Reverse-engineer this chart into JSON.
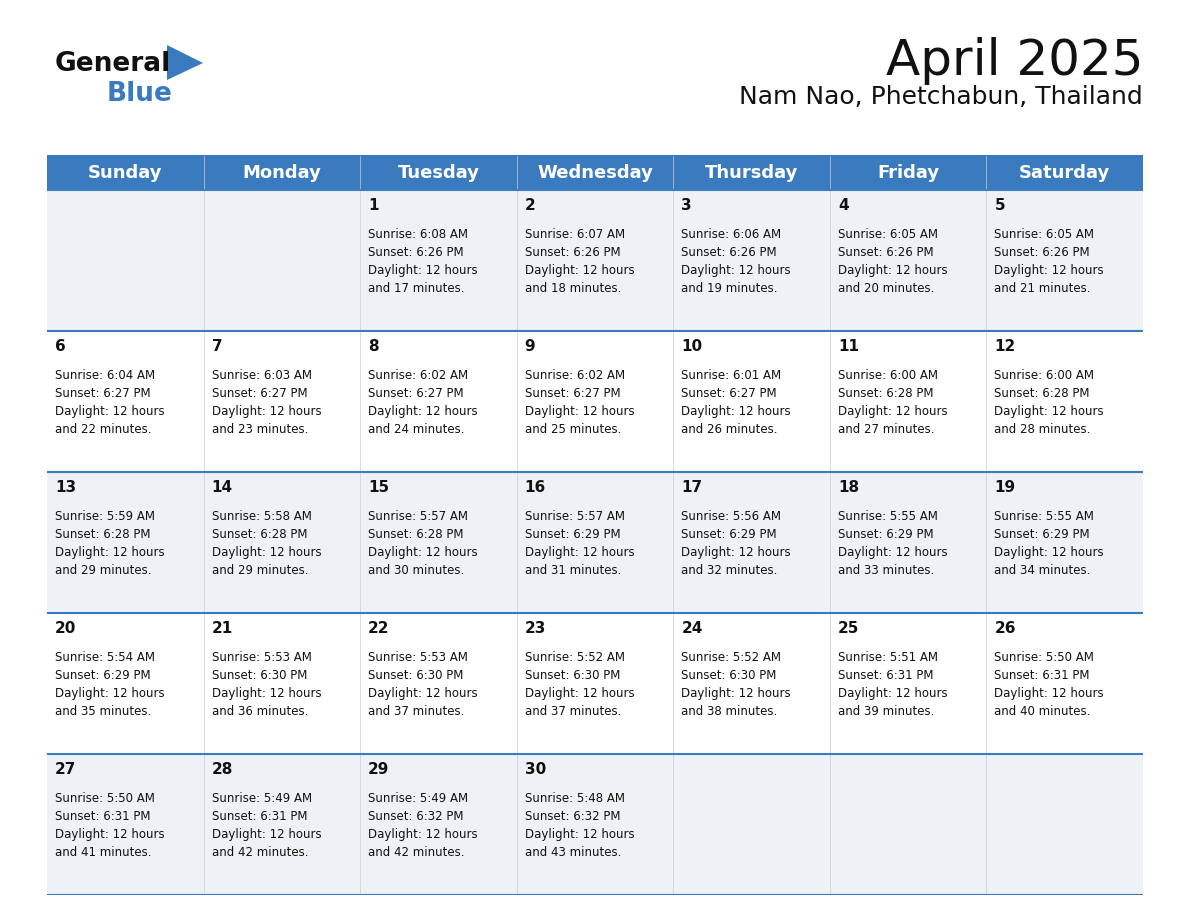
{
  "title": "April 2025",
  "subtitle": "Nam Nao, Phetchabun, Thailand",
  "header_bg": "#3a7bbf",
  "header_text": "#ffffff",
  "row_bg_odd": "#eef2f6",
  "row_bg_even": "#ffffff",
  "separator_color": "#3a7bbf",
  "day_headers": [
    "Sunday",
    "Monday",
    "Tuesday",
    "Wednesday",
    "Thursday",
    "Friday",
    "Saturday"
  ],
  "weeks": [
    [
      {
        "day": "",
        "sunrise": "",
        "sunset": "",
        "daylight": ""
      },
      {
        "day": "",
        "sunrise": "",
        "sunset": "",
        "daylight": ""
      },
      {
        "day": "1",
        "sunrise": "Sunrise: 6:08 AM",
        "sunset": "Sunset: 6:26 PM",
        "daylight": "Daylight: 12 hours\nand 17 minutes."
      },
      {
        "day": "2",
        "sunrise": "Sunrise: 6:07 AM",
        "sunset": "Sunset: 6:26 PM",
        "daylight": "Daylight: 12 hours\nand 18 minutes."
      },
      {
        "day": "3",
        "sunrise": "Sunrise: 6:06 AM",
        "sunset": "Sunset: 6:26 PM",
        "daylight": "Daylight: 12 hours\nand 19 minutes."
      },
      {
        "day": "4",
        "sunrise": "Sunrise: 6:05 AM",
        "sunset": "Sunset: 6:26 PM",
        "daylight": "Daylight: 12 hours\nand 20 minutes."
      },
      {
        "day": "5",
        "sunrise": "Sunrise: 6:05 AM",
        "sunset": "Sunset: 6:26 PM",
        "daylight": "Daylight: 12 hours\nand 21 minutes."
      }
    ],
    [
      {
        "day": "6",
        "sunrise": "Sunrise: 6:04 AM",
        "sunset": "Sunset: 6:27 PM",
        "daylight": "Daylight: 12 hours\nand 22 minutes."
      },
      {
        "day": "7",
        "sunrise": "Sunrise: 6:03 AM",
        "sunset": "Sunset: 6:27 PM",
        "daylight": "Daylight: 12 hours\nand 23 minutes."
      },
      {
        "day": "8",
        "sunrise": "Sunrise: 6:02 AM",
        "sunset": "Sunset: 6:27 PM",
        "daylight": "Daylight: 12 hours\nand 24 minutes."
      },
      {
        "day": "9",
        "sunrise": "Sunrise: 6:02 AM",
        "sunset": "Sunset: 6:27 PM",
        "daylight": "Daylight: 12 hours\nand 25 minutes."
      },
      {
        "day": "10",
        "sunrise": "Sunrise: 6:01 AM",
        "sunset": "Sunset: 6:27 PM",
        "daylight": "Daylight: 12 hours\nand 26 minutes."
      },
      {
        "day": "11",
        "sunrise": "Sunrise: 6:00 AM",
        "sunset": "Sunset: 6:28 PM",
        "daylight": "Daylight: 12 hours\nand 27 minutes."
      },
      {
        "day": "12",
        "sunrise": "Sunrise: 6:00 AM",
        "sunset": "Sunset: 6:28 PM",
        "daylight": "Daylight: 12 hours\nand 28 minutes."
      }
    ],
    [
      {
        "day": "13",
        "sunrise": "Sunrise: 5:59 AM",
        "sunset": "Sunset: 6:28 PM",
        "daylight": "Daylight: 12 hours\nand 29 minutes."
      },
      {
        "day": "14",
        "sunrise": "Sunrise: 5:58 AM",
        "sunset": "Sunset: 6:28 PM",
        "daylight": "Daylight: 12 hours\nand 29 minutes."
      },
      {
        "day": "15",
        "sunrise": "Sunrise: 5:57 AM",
        "sunset": "Sunset: 6:28 PM",
        "daylight": "Daylight: 12 hours\nand 30 minutes."
      },
      {
        "day": "16",
        "sunrise": "Sunrise: 5:57 AM",
        "sunset": "Sunset: 6:29 PM",
        "daylight": "Daylight: 12 hours\nand 31 minutes."
      },
      {
        "day": "17",
        "sunrise": "Sunrise: 5:56 AM",
        "sunset": "Sunset: 6:29 PM",
        "daylight": "Daylight: 12 hours\nand 32 minutes."
      },
      {
        "day": "18",
        "sunrise": "Sunrise: 5:55 AM",
        "sunset": "Sunset: 6:29 PM",
        "daylight": "Daylight: 12 hours\nand 33 minutes."
      },
      {
        "day": "19",
        "sunrise": "Sunrise: 5:55 AM",
        "sunset": "Sunset: 6:29 PM",
        "daylight": "Daylight: 12 hours\nand 34 minutes."
      }
    ],
    [
      {
        "day": "20",
        "sunrise": "Sunrise: 5:54 AM",
        "sunset": "Sunset: 6:29 PM",
        "daylight": "Daylight: 12 hours\nand 35 minutes."
      },
      {
        "day": "21",
        "sunrise": "Sunrise: 5:53 AM",
        "sunset": "Sunset: 6:30 PM",
        "daylight": "Daylight: 12 hours\nand 36 minutes."
      },
      {
        "day": "22",
        "sunrise": "Sunrise: 5:53 AM",
        "sunset": "Sunset: 6:30 PM",
        "daylight": "Daylight: 12 hours\nand 37 minutes."
      },
      {
        "day": "23",
        "sunrise": "Sunrise: 5:52 AM",
        "sunset": "Sunset: 6:30 PM",
        "daylight": "Daylight: 12 hours\nand 37 minutes."
      },
      {
        "day": "24",
        "sunrise": "Sunrise: 5:52 AM",
        "sunset": "Sunset: 6:30 PM",
        "daylight": "Daylight: 12 hours\nand 38 minutes."
      },
      {
        "day": "25",
        "sunrise": "Sunrise: 5:51 AM",
        "sunset": "Sunset: 6:31 PM",
        "daylight": "Daylight: 12 hours\nand 39 minutes."
      },
      {
        "day": "26",
        "sunrise": "Sunrise: 5:50 AM",
        "sunset": "Sunset: 6:31 PM",
        "daylight": "Daylight: 12 hours\nand 40 minutes."
      }
    ],
    [
      {
        "day": "27",
        "sunrise": "Sunrise: 5:50 AM",
        "sunset": "Sunset: 6:31 PM",
        "daylight": "Daylight: 12 hours\nand 41 minutes."
      },
      {
        "day": "28",
        "sunrise": "Sunrise: 5:49 AM",
        "sunset": "Sunset: 6:31 PM",
        "daylight": "Daylight: 12 hours\nand 42 minutes."
      },
      {
        "day": "29",
        "sunrise": "Sunrise: 5:49 AM",
        "sunset": "Sunset: 6:32 PM",
        "daylight": "Daylight: 12 hours\nand 42 minutes."
      },
      {
        "day": "30",
        "sunrise": "Sunrise: 5:48 AM",
        "sunset": "Sunset: 6:32 PM",
        "daylight": "Daylight: 12 hours\nand 43 minutes."
      },
      {
        "day": "",
        "sunrise": "",
        "sunset": "",
        "daylight": ""
      },
      {
        "day": "",
        "sunrise": "",
        "sunset": "",
        "daylight": ""
      },
      {
        "day": "",
        "sunrise": "",
        "sunset": "",
        "daylight": ""
      }
    ]
  ],
  "logo_text_general": "General",
  "logo_text_blue": "Blue",
  "logo_triangle_color": "#3a7bbf",
  "title_fontsize": 36,
  "subtitle_fontsize": 18,
  "header_fontsize": 13,
  "day_number_fontsize": 11,
  "cell_text_fontsize": 8.5
}
